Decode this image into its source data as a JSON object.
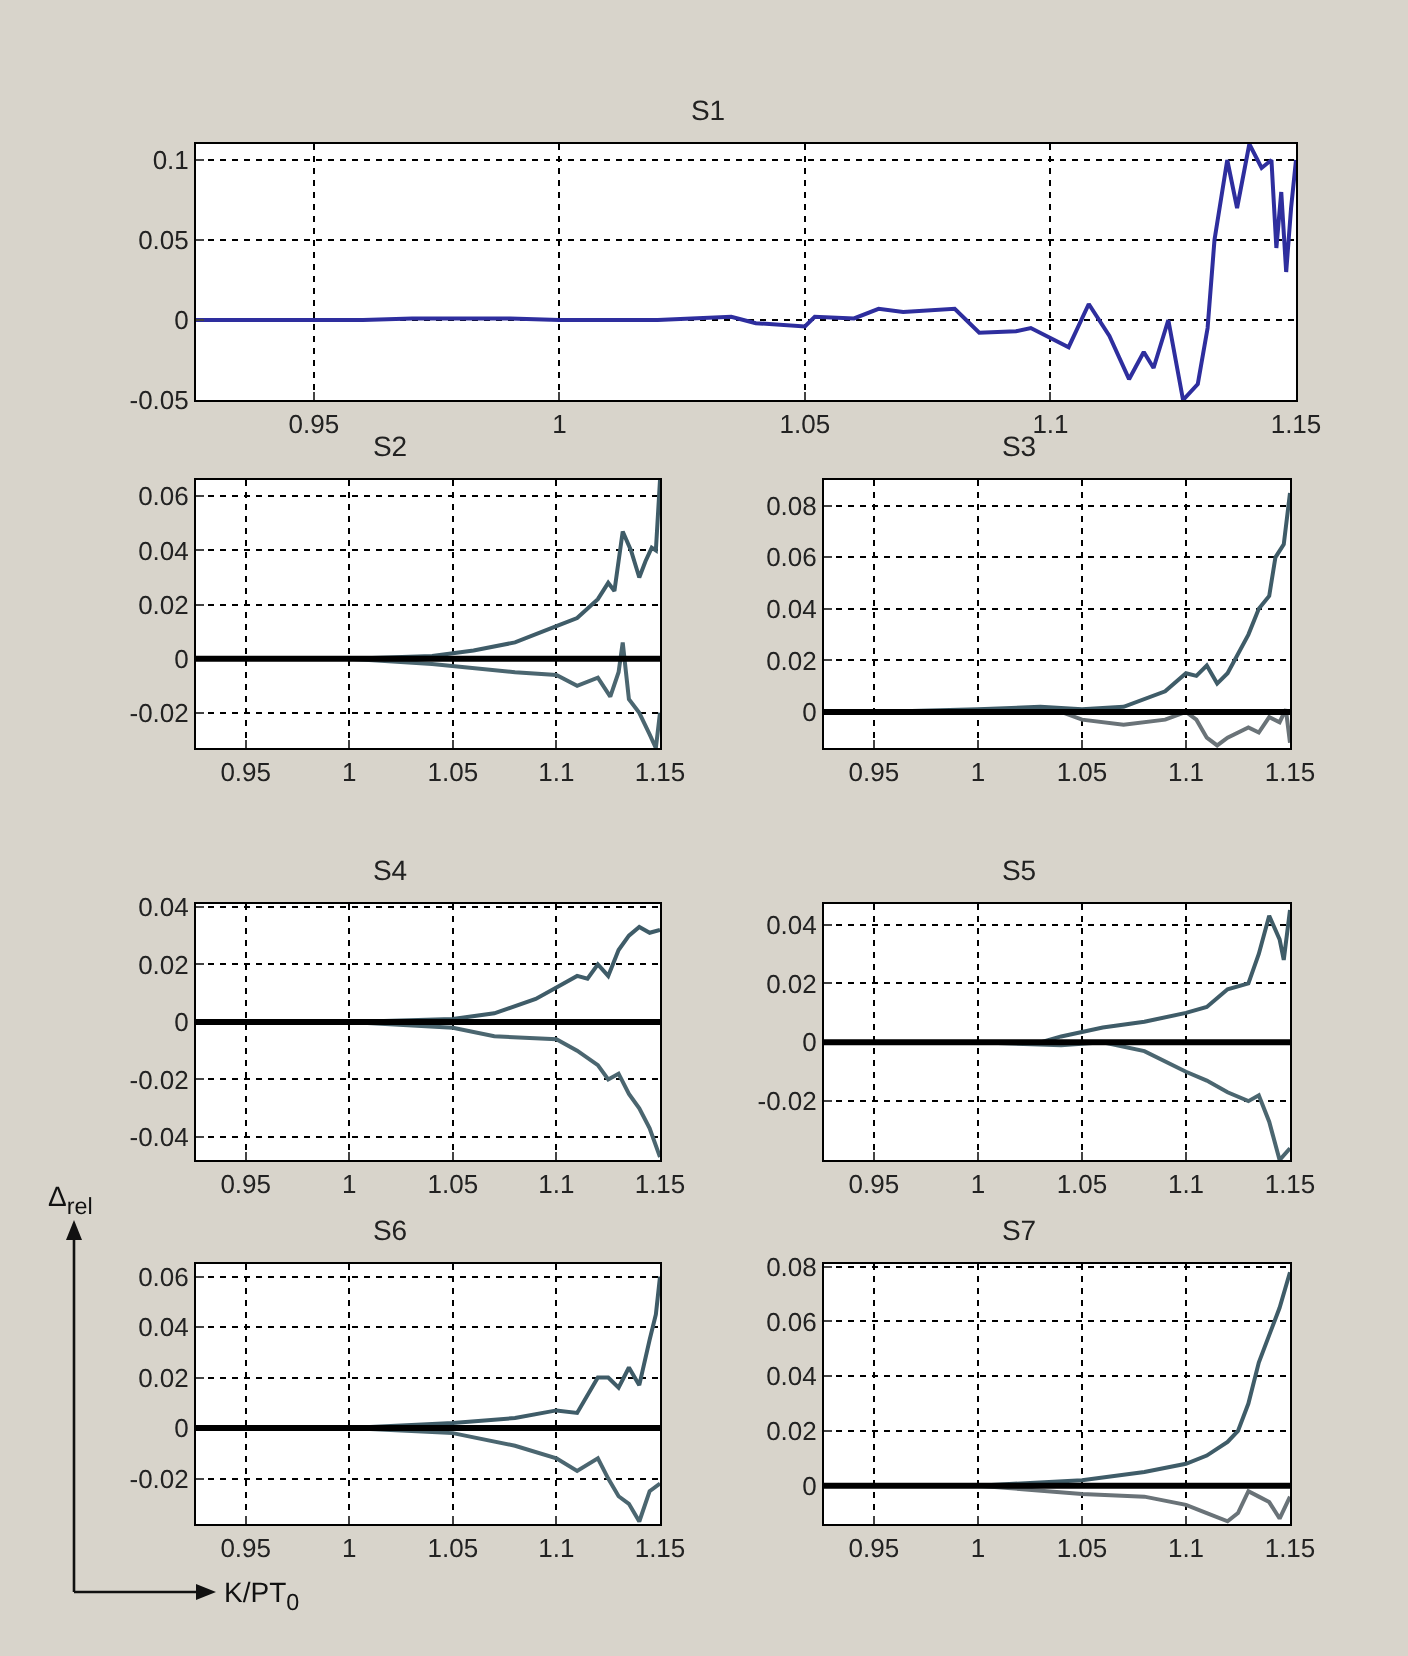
{
  "chart_data": [
    {
      "type": "line",
      "title": "S1",
      "xlim": [
        0.926,
        1.15
      ],
      "xticks": [
        0.95,
        1,
        1.05,
        1.1,
        1.15
      ],
      "ylim": [
        -0.05,
        0.11
      ],
      "yticks": [
        -0.05,
        0,
        0.05,
        0.1
      ],
      "grid": true,
      "marker": "none",
      "line_style": "solid",
      "series": [
        {
          "color": "#2e2e9e",
          "x": [
            0.926,
            0.96,
            0.97,
            0.98,
            0.99,
            1.0,
            1.02,
            1.035,
            1.04,
            1.05,
            1.052,
            1.06,
            1.065,
            1.07,
            1.0805,
            1.0855,
            1.093,
            1.096,
            1.1037,
            1.1078,
            1.112,
            1.116,
            1.119,
            1.121,
            1.124,
            1.127,
            1.13,
            1.132,
            1.1334,
            1.136,
            1.138,
            1.1405,
            1.143,
            1.145,
            1.146,
            1.147,
            1.148,
            1.149,
            1.15
          ],
          "values": [
            0,
            0,
            0.001,
            0.001,
            0.001,
            0,
            0,
            0.002,
            -0.002,
            -0.004,
            0.002,
            0.001,
            0.007,
            0.005,
            0.007,
            -0.008,
            -0.007,
            -0.005,
            -0.017,
            0.01,
            -0.01,
            -0.037,
            -0.02,
            -0.03,
            0,
            -0.05,
            -0.04,
            -0.005,
            0.05,
            0.1,
            0.07,
            0.11,
            0.095,
            0.1,
            0.045,
            0.08,
            0.03,
            0.07,
            0.1
          ]
        }
      ]
    },
    {
      "type": "line",
      "title": "S2",
      "xlim": [
        0.926,
        1.15
      ],
      "xticks": [
        0.95,
        1,
        1.05,
        1.1,
        1.15
      ],
      "ylim": [
        -0.033,
        0.066
      ],
      "yticks": [
        -0.02,
        0,
        0.02,
        0.04,
        0.06
      ],
      "grid": true,
      "marker": "none",
      "line_style": "solid",
      "ref_lines": [
        {
          "axis": "y",
          "value": 0,
          "color": "#000000"
        }
      ],
      "series": [
        {
          "color": "#3f5c68",
          "x": [
            0.926,
            0.99,
            1.0,
            1.04,
            1.06,
            1.08,
            1.1,
            1.11,
            1.12,
            1.125,
            1.128,
            1.132,
            1.136,
            1.14,
            1.143,
            1.146,
            1.148,
            1.15
          ],
          "values": [
            0,
            0,
            0,
            0.001,
            0.003,
            0.006,
            0.012,
            0.015,
            0.022,
            0.028,
            0.025,
            0.047,
            0.04,
            0.03,
            0.036,
            0.041,
            0.04,
            0.066
          ]
        },
        {
          "color": "#4b6670",
          "x": [
            0.926,
            1.0,
            1.04,
            1.08,
            1.1,
            1.11,
            1.12,
            1.126,
            1.13,
            1.132,
            1.135,
            1.14,
            1.145,
            1.148,
            1.15
          ],
          "values": [
            0,
            0,
            -0.002,
            -0.005,
            -0.006,
            -0.01,
            -0.007,
            -0.014,
            -0.005,
            0.006,
            -0.015,
            -0.02,
            -0.028,
            -0.033,
            -0.02
          ]
        }
      ]
    },
    {
      "type": "line",
      "title": "S3",
      "xlim": [
        0.926,
        1.15
      ],
      "xticks": [
        0.95,
        1,
        1.05,
        1.1,
        1.15
      ],
      "ylim": [
        -0.014,
        0.09
      ],
      "yticks": [
        0,
        0.02,
        0.04,
        0.06,
        0.08
      ],
      "grid": true,
      "marker": "none",
      "line_style": "solid",
      "ref_lines": [
        {
          "axis": "y",
          "value": 0,
          "color": "#000000"
        }
      ],
      "series": [
        {
          "color": "#3f5c68",
          "x": [
            0.926,
            0.95,
            1.0,
            1.03,
            1.05,
            1.07,
            1.09,
            1.1,
            1.105,
            1.11,
            1.115,
            1.12,
            1.13,
            1.135,
            1.14,
            1.143,
            1.147,
            1.15
          ],
          "values": [
            0,
            0,
            0.001,
            0.002,
            0.001,
            0.002,
            0.008,
            0.015,
            0.014,
            0.018,
            0.011,
            0.015,
            0.03,
            0.04,
            0.045,
            0.06,
            0.065,
            0.085
          ]
        },
        {
          "color": "#6a7378",
          "x": [
            0.926,
            1.0,
            1.04,
            1.05,
            1.07,
            1.09,
            1.1,
            1.105,
            1.11,
            1.115,
            1.12,
            1.13,
            1.135,
            1.14,
            1.145,
            1.148,
            1.15
          ],
          "values": [
            0,
            0,
            0,
            -0.003,
            -0.005,
            -0.003,
            0,
            -0.003,
            -0.01,
            -0.013,
            -0.01,
            -0.006,
            -0.008,
            -0.002,
            -0.004,
            0.001,
            -0.012
          ]
        }
      ]
    },
    {
      "type": "line",
      "title": "S4",
      "xlim": [
        0.926,
        1.15
      ],
      "xticks": [
        0.95,
        1,
        1.05,
        1.1,
        1.15
      ],
      "ylim": [
        -0.048,
        0.041
      ],
      "yticks": [
        -0.04,
        -0.02,
        0,
        0.02,
        0.04
      ],
      "grid": true,
      "marker": "none",
      "line_style": "solid",
      "ref_lines": [
        {
          "axis": "y",
          "value": 0,
          "color": "#000000"
        }
      ],
      "series": [
        {
          "color": "#3f5c68",
          "x": [
            0.926,
            0.95,
            1.0,
            1.05,
            1.07,
            1.09,
            1.1,
            1.11,
            1.115,
            1.12,
            1.125,
            1.13,
            1.135,
            1.14,
            1.145,
            1.15
          ],
          "values": [
            0,
            0,
            0,
            0.001,
            0.003,
            0.008,
            0.012,
            0.016,
            0.015,
            0.02,
            0.016,
            0.025,
            0.03,
            0.033,
            0.031,
            0.032
          ]
        },
        {
          "color": "#4b6670",
          "x": [
            0.926,
            1.0,
            1.05,
            1.07,
            1.1,
            1.11,
            1.12,
            1.125,
            1.13,
            1.135,
            1.14,
            1.145,
            1.15
          ],
          "values": [
            0,
            0,
            -0.002,
            -0.005,
            -0.006,
            -0.01,
            -0.015,
            -0.02,
            -0.018,
            -0.025,
            -0.03,
            -0.037,
            -0.047
          ]
        }
      ]
    },
    {
      "type": "line",
      "title": "S5",
      "xlim": [
        0.926,
        1.15
      ],
      "xticks": [
        0.95,
        1,
        1.05,
        1.1,
        1.15
      ],
      "ylim": [
        -0.04,
        0.047
      ],
      "yticks": [
        -0.02,
        0,
        0.02,
        0.04
      ],
      "grid": true,
      "marker": "none",
      "line_style": "solid",
      "ref_lines": [
        {
          "axis": "y",
          "value": 0,
          "color": "#000000"
        }
      ],
      "series": [
        {
          "color": "#3f5c68",
          "x": [
            0.926,
            0.96,
            1.0,
            1.03,
            1.04,
            1.06,
            1.08,
            1.1,
            1.11,
            1.12,
            1.13,
            1.135,
            1.14,
            1.145,
            1.147,
            1.15
          ],
          "values": [
            0,
            0,
            0,
            0,
            0.002,
            0.005,
            0.007,
            0.01,
            0.012,
            0.018,
            0.02,
            0.03,
            0.043,
            0.035,
            0.028,
            0.045
          ]
        },
        {
          "color": "#4b6670",
          "x": [
            0.926,
            1.0,
            1.04,
            1.06,
            1.08,
            1.1,
            1.11,
            1.12,
            1.13,
            1.135,
            1.14,
            1.145,
            1.15
          ],
          "values": [
            0,
            0,
            -0.001,
            0,
            -0.003,
            -0.01,
            -0.013,
            -0.017,
            -0.02,
            -0.018,
            -0.027,
            -0.04,
            -0.036
          ]
        }
      ]
    },
    {
      "type": "line",
      "title": "S6",
      "xlabel": "K/PT$_{0}$",
      "ylabel": "Δ$_{rel}$",
      "xlim": [
        0.926,
        1.15
      ],
      "xticks": [
        0.95,
        1,
        1.05,
        1.1,
        1.15
      ],
      "ylim": [
        -0.038,
        0.065
      ],
      "yticks": [
        -0.02,
        0,
        0.02,
        0.04,
        0.06
      ],
      "grid": true,
      "marker": "none",
      "line_style": "solid",
      "ref_lines": [
        {
          "axis": "y",
          "value": 0,
          "color": "#000000"
        }
      ],
      "series": [
        {
          "color": "#3f5c68",
          "x": [
            0.926,
            1.0,
            1.05,
            1.08,
            1.1,
            1.11,
            1.12,
            1.125,
            1.13,
            1.135,
            1.14,
            1.145,
            1.148,
            1.15
          ],
          "values": [
            0,
            0,
            0.002,
            0.004,
            0.007,
            0.006,
            0.02,
            0.02,
            0.016,
            0.024,
            0.017,
            0.035,
            0.045,
            0.06
          ]
        },
        {
          "color": "#4b6670",
          "x": [
            0.926,
            1.0,
            1.05,
            1.08,
            1.1,
            1.11,
            1.12,
            1.125,
            1.13,
            1.135,
            1.14,
            1.145,
            1.15
          ],
          "values": [
            0,
            0,
            -0.002,
            -0.007,
            -0.012,
            -0.017,
            -0.012,
            -0.02,
            -0.027,
            -0.03,
            -0.037,
            -0.025,
            -0.022
          ]
        }
      ]
    },
    {
      "type": "line",
      "title": "S7",
      "xlim": [
        0.926,
        1.15
      ],
      "xticks": [
        0.95,
        1,
        1.05,
        1.1,
        1.15
      ],
      "ylim": [
        -0.014,
        0.081
      ],
      "yticks": [
        0,
        0.02,
        0.04,
        0.06,
        0.08
      ],
      "grid": true,
      "marker": "none",
      "line_style": "solid",
      "ref_lines": [
        {
          "axis": "y",
          "value": 0,
          "color": "#000000"
        }
      ],
      "series": [
        {
          "color": "#3f5c68",
          "x": [
            0.926,
            1.0,
            1.05,
            1.08,
            1.1,
            1.11,
            1.12,
            1.125,
            1.13,
            1.135,
            1.14,
            1.145,
            1.15
          ],
          "values": [
            0,
            0,
            0.002,
            0.005,
            0.008,
            0.011,
            0.016,
            0.02,
            0.03,
            0.045,
            0.055,
            0.065,
            0.078
          ]
        },
        {
          "color": "#6a7378",
          "x": [
            0.926,
            1.0,
            1.05,
            1.08,
            1.1,
            1.11,
            1.12,
            1.125,
            1.13,
            1.135,
            1.14,
            1.145,
            1.15
          ],
          "values": [
            0,
            0,
            -0.003,
            -0.004,
            -0.007,
            -0.01,
            -0.013,
            -0.01,
            -0.002,
            -0.004,
            -0.006,
            -0.012,
            -0.004
          ]
        }
      ]
    }
  ]
}
